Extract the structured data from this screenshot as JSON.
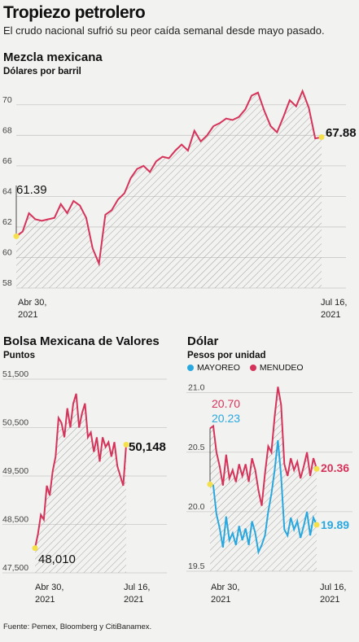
{
  "header": {
    "title": "Tropiezo petrolero",
    "subtitle": "El crudo nacional sufrió su peor caída semanal desde mayo pasado."
  },
  "source": "Fuente: Pemex, Bloomberg y CitiBanamex.",
  "colors": {
    "red": "#d6335a",
    "blue": "#29a8e0",
    "highlight": "#f5e04a",
    "grid": "#c8c8c8"
  },
  "charts": {
    "mezcla": {
      "title": "Mezcla mexicana",
      "unit": "Dólares por barril",
      "start_label": "61.39",
      "end_label": "67.88",
      "x_start_line1": "Abr 30,",
      "x_start_line2": "2021",
      "x_end_line1": "Jul 16,",
      "x_end_line2": "2021"
    },
    "bolsa": {
      "title": "Bolsa Mexicana de Valores",
      "unit": "Puntos",
      "start_label": "48,010",
      "end_label": "50,148",
      "x_start_line1": "Abr 30,",
      "x_start_line2": "2021",
      "x_end_line1": "Jul 16,",
      "x_end_line2": "2021"
    },
    "dolar": {
      "title": "Dólar",
      "unit": "Pesos por unidad",
      "legend_mayoreo": "MAYOREO",
      "legend_menudeo": "MENUDEO",
      "start_menudeo": "20.70",
      "start_mayoreo": "20.23",
      "end_menudeo": "20.36",
      "end_mayoreo": "19.89",
      "x_start_line1": "Abr 30,",
      "x_start_line2": "2021",
      "x_end_line1": "Jul 16,",
      "x_end_line2": "2021"
    }
  },
  "chart_data": [
    {
      "type": "area",
      "title": "Mezcla mexicana",
      "ylabel": "Dólares por barril",
      "ylim": [
        58,
        71
      ],
      "yticks": [
        58,
        60,
        62,
        64,
        66,
        68,
        70
      ],
      "grid": true,
      "x_labels": [
        "Abr 30, 2021",
        "Jul 16, 2021"
      ],
      "series": [
        {
          "name": "Mezcla mexicana",
          "values": [
            61.39,
            61.7,
            62.9,
            62.5,
            62.4,
            62.5,
            62.6,
            63.5,
            62.9,
            63.7,
            63.4,
            62.6,
            60.6,
            59.6,
            62.8,
            63.1,
            63.8,
            64.2,
            65.2,
            65.8,
            66.0,
            65.6,
            66.3,
            66.6,
            66.5,
            67.0,
            67.4,
            67.0,
            68.3,
            67.6,
            68.0,
            68.6,
            68.8,
            69.1,
            69.0,
            69.2,
            69.7,
            70.6,
            70.8,
            69.6,
            68.6,
            68.2,
            69.2,
            70.3,
            69.9,
            70.9,
            69.8,
            67.8,
            67.88
          ]
        }
      ]
    },
    {
      "type": "area",
      "title": "Bolsa Mexicana de Valores",
      "ylabel": "Puntos",
      "ylim": [
        47500,
        51500
      ],
      "yticks": [
        47500,
        48500,
        49500,
        50500,
        51500
      ],
      "grid": true,
      "x_labels": [
        "Abr 30, 2021",
        "Jul 16, 2021"
      ],
      "series": [
        {
          "name": "Bolsa Mexicana de Valores",
          "values": [
            48010,
            48300,
            48700,
            48600,
            49300,
            49100,
            49600,
            49900,
            50700,
            50600,
            50300,
            50900,
            50500,
            51000,
            51200,
            50500,
            50800,
            51000,
            50300,
            50400,
            50000,
            50300,
            49800,
            50300,
            50100,
            50200,
            49900,
            50200,
            49700,
            49500,
            49300,
            50148
          ]
        }
      ]
    },
    {
      "type": "area",
      "title": "Dólar",
      "ylabel": "Pesos por unidad",
      "ylim": [
        19.5,
        21.1
      ],
      "yticks": [
        19.5,
        20.0,
        20.5,
        21.0
      ],
      "grid": true,
      "legend": "top",
      "x_labels": [
        "Abr 30, 2021",
        "Jul 16, 2021"
      ],
      "series": [
        {
          "name": "MENUDEO",
          "values": [
            20.7,
            20.72,
            20.5,
            20.38,
            20.22,
            20.48,
            20.28,
            20.35,
            20.25,
            20.4,
            20.3,
            20.4,
            20.25,
            20.45,
            20.35,
            20.18,
            20.05,
            20.32,
            20.55,
            20.5,
            20.8,
            21.05,
            20.9,
            20.4,
            20.3,
            20.45,
            20.35,
            20.42,
            20.28,
            20.38,
            20.5,
            20.3,
            20.45,
            20.36
          ]
        },
        {
          "name": "MAYOREO",
          "values": [
            20.23,
            20.22,
            19.98,
            19.86,
            19.7,
            19.96,
            19.76,
            19.82,
            19.72,
            19.88,
            19.76,
            19.86,
            19.72,
            19.92,
            19.82,
            19.66,
            19.72,
            19.8,
            20.0,
            20.15,
            20.35,
            20.6,
            20.3,
            19.85,
            19.8,
            19.95,
            19.85,
            19.92,
            19.78,
            19.88,
            20.0,
            19.8,
            19.95,
            19.89
          ]
        }
      ]
    }
  ]
}
